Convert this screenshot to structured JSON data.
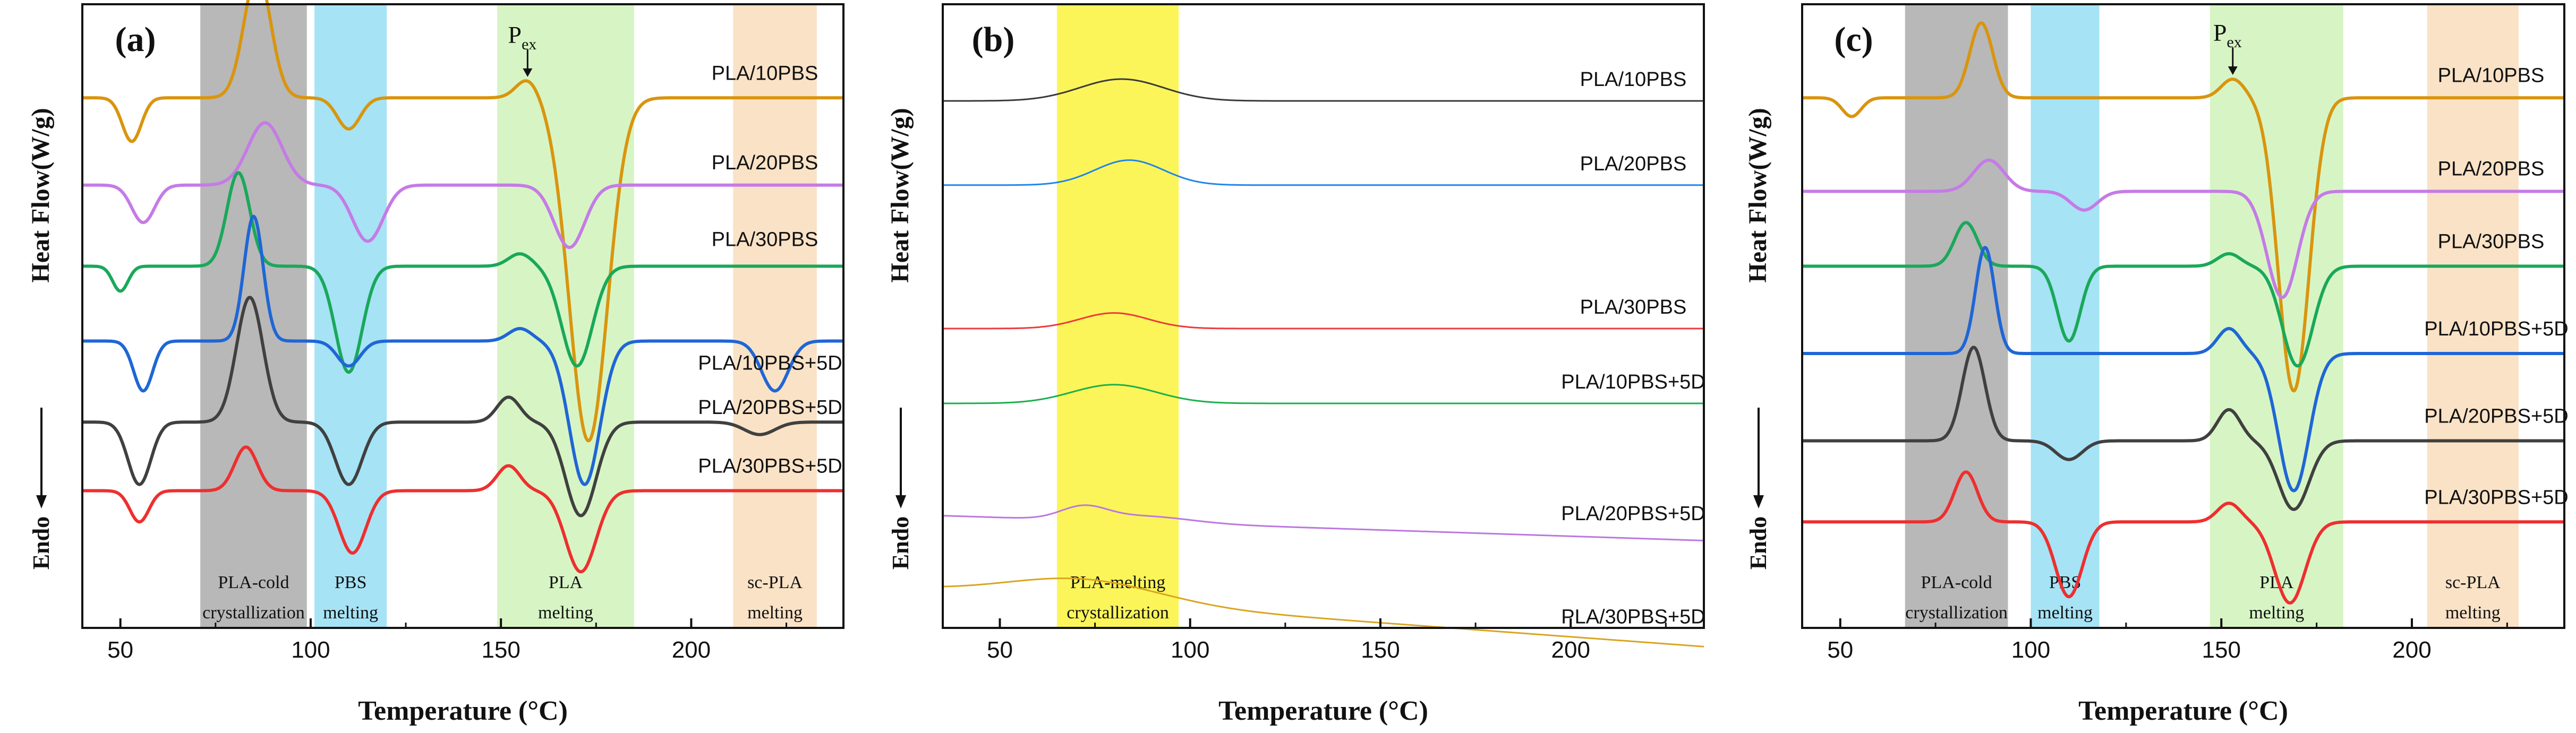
{
  "ylabel": "Heat Flow(W/g)",
  "endo": "Endo",
  "xlabel": "Temperature (°C)",
  "chart_data": [
    {
      "panel": "(a)",
      "type": "line",
      "xlim": [
        40,
        240
      ],
      "xticks": [
        50,
        100,
        150,
        200
      ],
      "bands": [
        {
          "from": 71,
          "to": 99,
          "color": "#b8b8b8",
          "label1": "PLA-cold",
          "label2": "crystallization"
        },
        {
          "from": 101,
          "to": 120,
          "color": "#a6e3f5",
          "label1": "PBS",
          "label2": "melting"
        },
        {
          "from": 149,
          "to": 185,
          "color": "#d7f5c4",
          "label1": "PLA",
          "label2": "melting"
        },
        {
          "from": 211,
          "to": 233,
          "color": "#fae2c6",
          "label1": "sc-PLA",
          "label2": "melting"
        }
      ],
      "annotation": {
        "text": "P",
        "sub": "ex",
        "x": 157,
        "series": 0
      },
      "series": [
        {
          "name": "PLA/10PBS",
          "color": "#d9950f",
          "base": 0.15,
          "drift": 0.0,
          "width": 6,
          "peaks": [
            [
              53,
              2.5,
              -0.07
            ],
            [
              86,
              3.5,
              0.2
            ],
            [
              110,
              3,
              -0.05
            ],
            [
              157,
              3,
              0.03
            ],
            [
              173,
              5,
              -0.55
            ]
          ]
        },
        {
          "name": "PLA/20PBS",
          "color": "#c57be6",
          "base": 0.29,
          "drift": 0.0,
          "width": 6,
          "peaks": [
            [
              56,
              3,
              -0.06
            ],
            [
              88,
              4.5,
              0.1
            ],
            [
              115,
              4,
              -0.09
            ],
            [
              168,
              4,
              -0.1
            ]
          ]
        },
        {
          "name": "PLA/30PBS",
          "color": "#1aa85a",
          "base": 0.42,
          "drift": 0.0,
          "width": 6,
          "peaks": [
            [
              50,
              2,
              -0.04
            ],
            [
              81,
              3,
              0.15
            ],
            [
              110,
              3.5,
              -0.17
            ],
            [
              155,
              3,
              0.02
            ],
            [
              170,
              4,
              -0.16
            ]
          ]
        },
        {
          "name": "PLA/10PBS+5D",
          "color": "#1f66d6",
          "base": 0.54,
          "drift": 0.0,
          "width": 6,
          "peaks": [
            [
              56,
              2.5,
              -0.08
            ],
            [
              85,
              2.5,
              0.2
            ],
            [
              110,
              3,
              -0.04
            ],
            [
              155,
              3,
              0.02
            ],
            [
              172,
              4,
              -0.23
            ],
            [
              222,
              3.5,
              -0.08
            ]
          ]
        },
        {
          "name": "PLA/20PBS+5D",
          "color": "#404040",
          "base": 0.67,
          "drift": 0.0,
          "width": 6,
          "peaks": [
            [
              55,
              3,
              -0.1
            ],
            [
              84,
              3.5,
              0.2
            ],
            [
              110,
              3.5,
              -0.1
            ],
            [
              152,
              3,
              0.04
            ],
            [
              171,
              4,
              -0.15
            ],
            [
              218,
              4,
              -0.02
            ]
          ]
        },
        {
          "name": "PLA/30PBS+5D",
          "color": "#ee2f2f",
          "base": 0.78,
          "drift": 0.0,
          "width": 6,
          "peaks": [
            [
              55,
              2.5,
              -0.05
            ],
            [
              83,
              3,
              0.07
            ],
            [
              111,
              3.5,
              -0.1
            ],
            [
              152,
              3,
              0.04
            ],
            [
              171,
              4,
              -0.13
            ]
          ]
        }
      ]
    },
    {
      "panel": "(b)",
      "type": "line",
      "xlim": [
        35,
        235
      ],
      "xticks": [
        50,
        100,
        150,
        200
      ],
      "bands": [
        {
          "from": 65,
          "to": 97,
          "color": "#fbf55a",
          "label1": "PLA-melting",
          "label2": "crystallization"
        }
      ],
      "series": [
        {
          "name": "PLA/10PBS",
          "color": "#3a3a3a",
          "base": 0.155,
          "drift": 0.0,
          "width": 3,
          "peaks": [
            [
              82,
              11,
              0.035
            ]
          ]
        },
        {
          "name": "PLA/20PBS",
          "color": "#1f86e8",
          "base": 0.29,
          "drift": 0.0,
          "width": 3,
          "peaks": [
            [
              84,
              9,
              0.04
            ]
          ]
        },
        {
          "name": "PLA/30PBS",
          "color": "#ee3a3a",
          "base": 0.52,
          "drift": 0.0,
          "width": 3,
          "peaks": [
            [
              80,
              9,
              0.025
            ]
          ]
        },
        {
          "name": "PLA/10PBS+5D",
          "color": "#19b04a",
          "base": 0.64,
          "drift": 0.0,
          "width": 3,
          "peaks": [
            [
              80,
              11,
              0.03
            ]
          ]
        },
        {
          "name": "PLA/20PBS+5D",
          "color": "#bb77e0",
          "base": 0.82,
          "drift": 0.04,
          "width": 3,
          "peaks": [
            [
              72,
              6,
              0.02
            ],
            [
              88,
              12,
              0.01
            ]
          ]
        },
        {
          "name": "PLA/30PBS+5D",
          "color": "#d9a520",
          "base": 0.94,
          "drift": 0.09,
          "width": 3,
          "peaks": [
            [
              72,
              20,
              0.035
            ]
          ]
        }
      ]
    },
    {
      "panel": "(c)",
      "type": "line",
      "xlim": [
        40,
        240
      ],
      "xticks": [
        50,
        100,
        150,
        200
      ],
      "bands": [
        {
          "from": 67,
          "to": 94,
          "color": "#b8b8b8",
          "label1": "PLA-cold",
          "label2": "crystallization"
        },
        {
          "from": 100,
          "to": 118,
          "color": "#a6e3f5",
          "label1": "PBS",
          "label2": "melting"
        },
        {
          "from": 147,
          "to": 182,
          "color": "#d7f5c4",
          "label1": "PLA",
          "label2": "melting"
        },
        {
          "from": 204,
          "to": 228,
          "color": "#fae2c6",
          "label1": "sc-PLA",
          "label2": "melting"
        }
      ],
      "annotation": {
        "text": "P",
        "sub": "ex",
        "x": 153,
        "series": 0
      },
      "series": [
        {
          "name": "PLA/10PBS",
          "color": "#d9950f",
          "base": 0.15,
          "drift": 0.0,
          "width": 6,
          "peaks": [
            [
              53,
              2.5,
              -0.03
            ],
            [
              87,
              3,
              0.12
            ],
            [
              153,
              3,
              0.03
            ],
            [
              169,
              4,
              -0.47
            ]
          ]
        },
        {
          "name": "PLA/20PBS",
          "color": "#c57be6",
          "base": 0.3,
          "drift": 0.0,
          "width": 6,
          "peaks": [
            [
              89,
              4,
              0.05
            ],
            [
              114,
              3.5,
              -0.03
            ],
            [
              166,
              4,
              -0.17
            ]
          ]
        },
        {
          "name": "PLA/30PBS",
          "color": "#1aa85a",
          "base": 0.42,
          "drift": 0.0,
          "width": 6,
          "peaks": [
            [
              83,
              3,
              0.07
            ],
            [
              110,
              3,
              -0.12
            ],
            [
              152,
              3,
              0.02
            ],
            [
              170,
              4,
              -0.16
            ]
          ]
        },
        {
          "name": "PLA/10PBS+5D",
          "color": "#1f66d6",
          "base": 0.56,
          "drift": 0.0,
          "width": 6,
          "peaks": [
            [
              88,
              2.5,
              0.17
            ],
            [
              152,
              3,
              0.04
            ],
            [
              169,
              4,
              -0.22
            ]
          ]
        },
        {
          "name": "PLA/20PBS+5D",
          "color": "#404040",
          "base": 0.7,
          "drift": 0.0,
          "width": 6,
          "peaks": [
            [
              85,
              3,
              0.15
            ],
            [
              110,
              3.5,
              -0.03
            ],
            [
              152,
              3,
              0.05
            ],
            [
              169,
              4,
              -0.11
            ]
          ]
        },
        {
          "name": "PLA/30PBS+5D",
          "color": "#ee2f2f",
          "base": 0.83,
          "drift": 0.0,
          "width": 6,
          "peaks": [
            [
              83,
              3,
              0.08
            ],
            [
              110,
              3.5,
              -0.12
            ],
            [
              152,
              3,
              0.03
            ],
            [
              168,
              4,
              -0.13
            ]
          ]
        }
      ]
    }
  ]
}
